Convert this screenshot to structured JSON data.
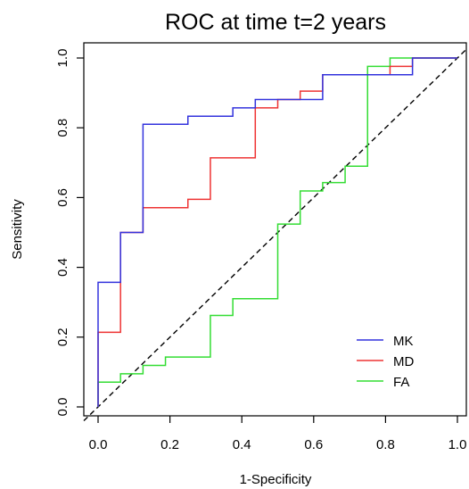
{
  "chart_data": {
    "type": "line",
    "title": "ROC at time t=2 years",
    "xlabel": "1-Specificity",
    "ylabel": "Sensitivity",
    "xlim": [
      0,
      1
    ],
    "ylim": [
      0,
      1
    ],
    "xticks": [
      "0.0",
      "0.2",
      "0.4",
      "0.6",
      "0.8",
      "1.0"
    ],
    "yticks": [
      "0.0",
      "0.2",
      "0.4",
      "0.6",
      "0.8",
      "1.0"
    ],
    "legend_position": "bottom-right",
    "grid": false,
    "reference_line": {
      "x": [
        0,
        1
      ],
      "y": [
        0,
        1
      ],
      "style": "dashed",
      "color": "#000000"
    },
    "series": [
      {
        "name": "MK",
        "color": "#3333dd",
        "x": [
          0,
          0,
          0.0625,
          0.0625,
          0.125,
          0.125,
          0.25,
          0.25,
          0.375,
          0.375,
          0.4375,
          0.4375,
          0.5,
          0.5,
          0.5625,
          0.5625,
          0.625,
          0.625,
          0.75,
          0.75,
          0.8125,
          0.8125,
          0.875,
          0.875,
          1
        ],
        "y": [
          0,
          0.357,
          0.357,
          0.5,
          0.5,
          0.81,
          0.81,
          0.833,
          0.833,
          0.857,
          0.857,
          0.881,
          0.881,
          0.881,
          0.881,
          0.881,
          0.881,
          0.952,
          0.952,
          0.952,
          0.952,
          0.952,
          0.952,
          1,
          1
        ]
      },
      {
        "name": "MD",
        "color": "#ee3333",
        "x": [
          0,
          0,
          0.0625,
          0.0625,
          0.125,
          0.125,
          0.25,
          0.25,
          0.3125,
          0.3125,
          0.4375,
          0.4375,
          0.5,
          0.5,
          0.5625,
          0.5625,
          0.625,
          0.625,
          0.8125,
          0.8125,
          0.875,
          0.875,
          1
        ],
        "y": [
          0,
          0.214,
          0.214,
          0.5,
          0.5,
          0.571,
          0.571,
          0.595,
          0.595,
          0.714,
          0.714,
          0.857,
          0.857,
          0.881,
          0.881,
          0.905,
          0.905,
          0.952,
          0.952,
          0.976,
          0.976,
          1,
          1
        ]
      },
      {
        "name": "FA",
        "color": "#33dd33",
        "x": [
          0,
          0,
          0.0625,
          0.0625,
          0.125,
          0.125,
          0.1875,
          0.1875,
          0.3125,
          0.3125,
          0.375,
          0.375,
          0.5,
          0.5,
          0.5625,
          0.5625,
          0.625,
          0.625,
          0.6875,
          0.6875,
          0.75,
          0.75,
          0.8125,
          0.8125,
          1
        ],
        "y": [
          0,
          0.071,
          0.071,
          0.095,
          0.095,
          0.119,
          0.119,
          0.143,
          0.143,
          0.262,
          0.262,
          0.31,
          0.31,
          0.524,
          0.524,
          0.619,
          0.619,
          0.643,
          0.643,
          0.69,
          0.69,
          0.976,
          0.976,
          1,
          1
        ]
      }
    ]
  }
}
